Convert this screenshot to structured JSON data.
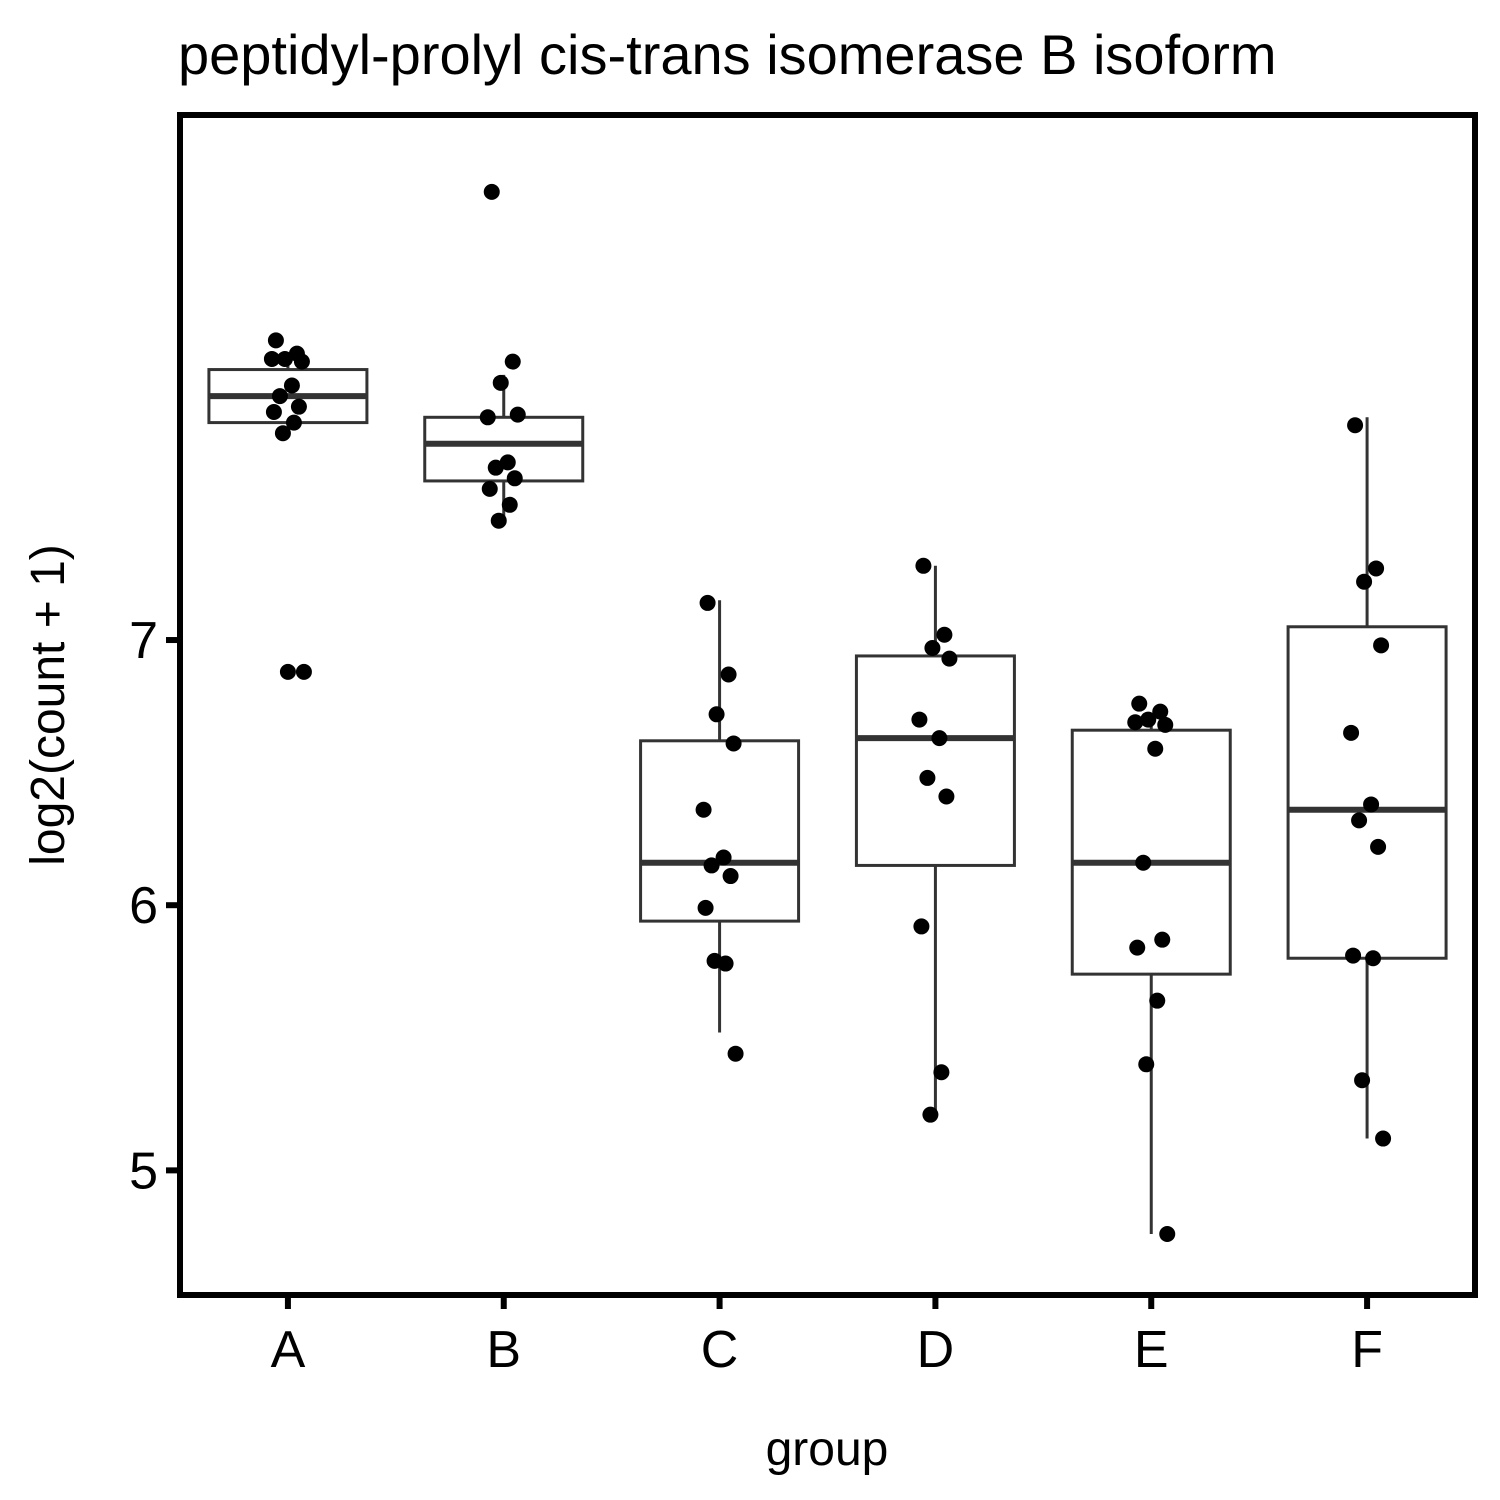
{
  "chart_data": {
    "type": "box",
    "title": "peptidyl-prolyl cis-trans isomerase B isoform",
    "xlabel": "group",
    "ylabel": "log2(count + 1)",
    "ylim": [
      4.53,
      8.98
    ],
    "yticks": [
      5,
      6,
      7
    ],
    "grid": false,
    "legend": "none",
    "categories": [
      "A",
      "B",
      "C",
      "D",
      "E",
      "F"
    ],
    "boxes": [
      {
        "group": "A",
        "min": 7.82,
        "q1": 7.82,
        "median": 7.92,
        "q3": 8.02,
        "max": 8.08
      },
      {
        "group": "B",
        "min": 7.45,
        "q1": 7.6,
        "median": 7.74,
        "q3": 7.84,
        "max": 8.0
      },
      {
        "group": "C",
        "min": 5.52,
        "q1": 5.94,
        "median": 6.16,
        "q3": 6.62,
        "max": 7.15
      },
      {
        "group": "D",
        "min": 5.21,
        "q1": 6.15,
        "median": 6.63,
        "q3": 6.94,
        "max": 7.28
      },
      {
        "group": "E",
        "min": 4.76,
        "q1": 5.74,
        "median": 6.16,
        "q3": 6.66,
        "max": 6.72
      },
      {
        "group": "F",
        "min": 5.12,
        "q1": 5.8,
        "median": 6.36,
        "q3": 7.05,
        "max": 7.84
      }
    ],
    "points": {
      "A": [
        8.13,
        8.08,
        8.06,
        8.05,
        8.06,
        7.96,
        7.92,
        7.88,
        7.86,
        7.82,
        7.78,
        6.88,
        6.88
      ],
      "B": [
        8.69,
        8.05,
        7.97,
        7.85,
        7.84,
        7.67,
        7.65,
        7.61,
        7.57,
        7.51,
        7.45
      ],
      "C": [
        7.14,
        6.87,
        6.72,
        6.61,
        6.36,
        6.18,
        6.15,
        6.11,
        5.99,
        5.78,
        5.79,
        5.44
      ],
      "D": [
        7.28,
        7.02,
        6.97,
        6.93,
        6.7,
        6.63,
        6.48,
        6.41,
        5.92,
        5.37,
        5.21
      ],
      "E": [
        6.76,
        6.73,
        6.7,
        6.68,
        6.69,
        6.59,
        6.16,
        5.87,
        5.84,
        5.64,
        5.4,
        4.76
      ],
      "F": [
        7.81,
        7.27,
        7.22,
        6.98,
        6.65,
        6.38,
        6.32,
        6.22,
        5.81,
        5.8,
        5.34,
        5.12
      ]
    },
    "colors": {
      "box_stroke": "#333333",
      "point": "#000000",
      "frame": "#000000",
      "background": "#ffffff"
    }
  }
}
